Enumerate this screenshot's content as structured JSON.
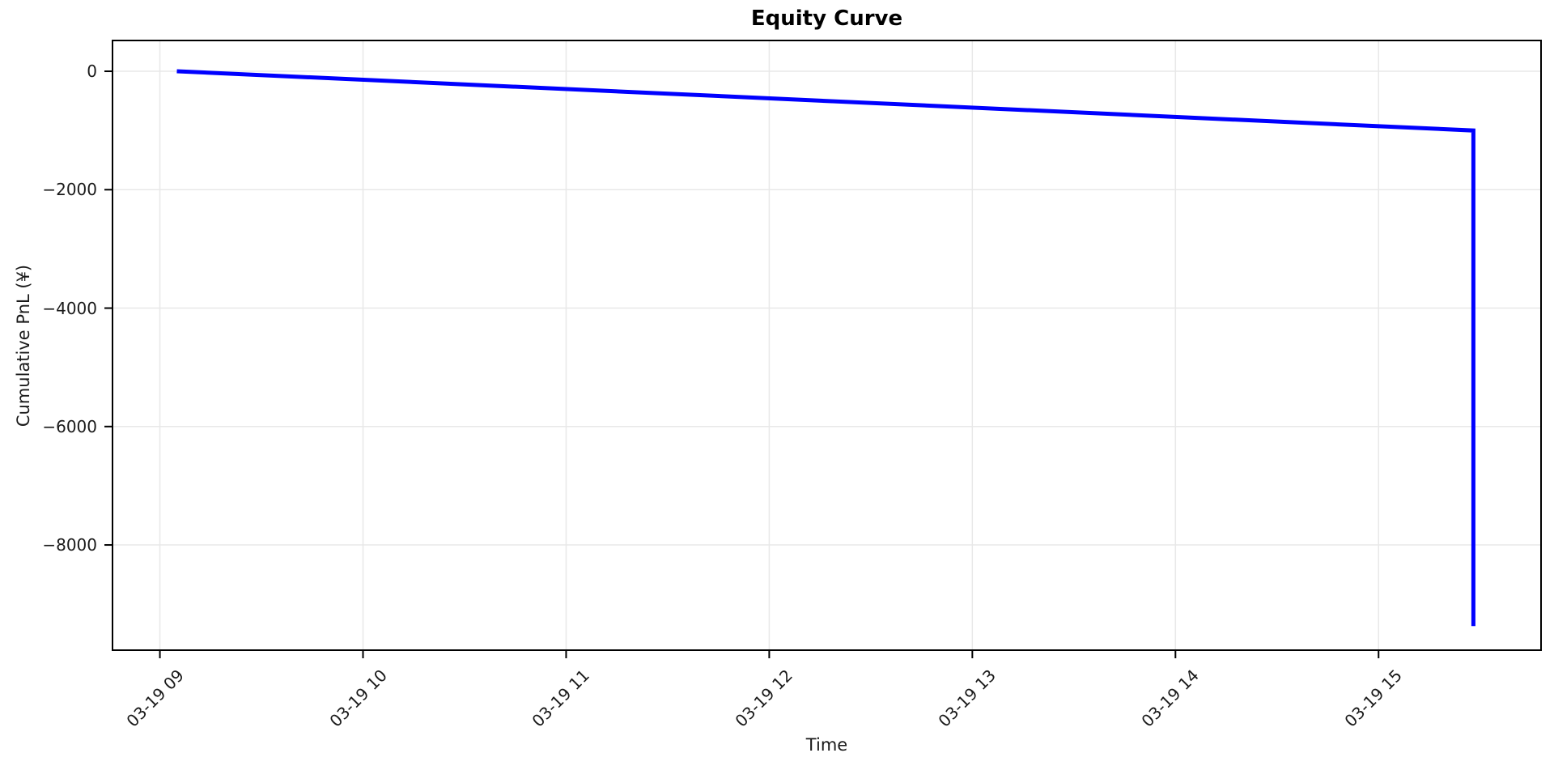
{
  "chart_data": {
    "type": "line",
    "title": "Equity Curve",
    "xlabel": "Time",
    "ylabel": "Cumulative PnL (¥)",
    "grid": true,
    "legend": false,
    "background_color": "#ffffff",
    "grid_color": "#e8e8e8",
    "spine_color": "#000000",
    "tick_text_color": "#1a1a1a",
    "x_ticks": [
      {
        "label": "03-19 09",
        "time": "03-19 09:00"
      },
      {
        "label": "03-19 10",
        "time": "03-19 10:00"
      },
      {
        "label": "03-19 11",
        "time": "03-19 11:00"
      },
      {
        "label": "03-19 12",
        "time": "03-19 12:00"
      },
      {
        "label": "03-19 13",
        "time": "03-19 13:00"
      },
      {
        "label": "03-19 14",
        "time": "03-19 14:00"
      },
      {
        "label": "03-19 15",
        "time": "03-19 15:00"
      }
    ],
    "y_ticks": [
      {
        "label": "0",
        "value": 0
      },
      {
        "label": "−2000",
        "value": -2000
      },
      {
        "label": "−4000",
        "value": -4000
      },
      {
        "label": "−6000",
        "value": -6000
      },
      {
        "label": "−8000",
        "value": -8000
      }
    ],
    "xlim": [
      "03-19 08:46",
      "03-19 15:48"
    ],
    "ylim": [
      -9777,
      520
    ],
    "series": [
      {
        "name": "Cumulative PnL",
        "color": "#0000ff",
        "line_width": 5,
        "points": [
          {
            "time": "03-19 09:05",
            "value": 0
          },
          {
            "time": "03-19 15:28",
            "value": -1000
          },
          {
            "time": "03-19 15:28",
            "value": -9370
          }
        ]
      }
    ]
  }
}
